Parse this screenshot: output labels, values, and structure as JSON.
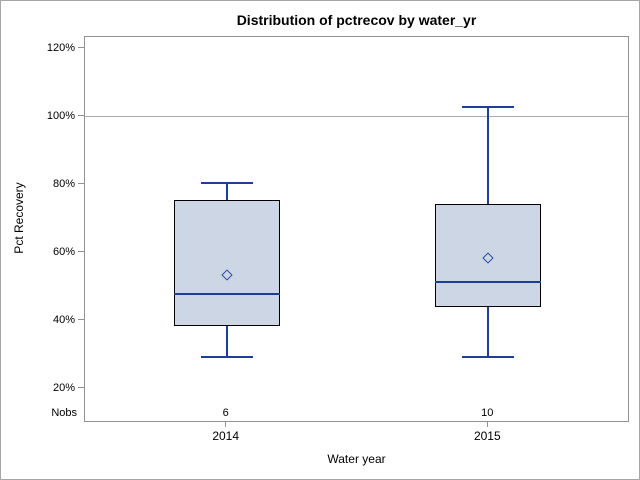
{
  "chart_data": {
    "type": "boxplot",
    "title": "Distribution of pctrecov by water_yr",
    "xlabel": "Water year",
    "ylabel": "Pct Recovery",
    "nobs_label": "Nobs",
    "categories": [
      "2014",
      "2015"
    ],
    "series": [
      {
        "category": "2014",
        "nobs": "6",
        "whisker_low": 29.5,
        "q1": 38.5,
        "median": 48,
        "mean": 53.5,
        "q3": 75.5,
        "whisker_high": 80.5
      },
      {
        "category": "2015",
        "nobs": "10",
        "whisker_low": 29.5,
        "q1": 44,
        "median": 51.5,
        "mean": 58.5,
        "q3": 74.5,
        "whisker_high": 103
      }
    ],
    "y_ticks": [
      20,
      40,
      60,
      80,
      100,
      120
    ],
    "y_tick_suffix": "%",
    "ylim": [
      10,
      123.5
    ],
    "reference_line": 100,
    "grid": false,
    "legend": "none"
  },
  "colors": {
    "background": "#ffffff",
    "figure_border": "#a6a6a6",
    "frame": "#8f9194",
    "tick": "#8f9194",
    "gridline": "#a9adb2",
    "box_fill": "#ccd6e4",
    "box_border": "#000000",
    "whisker": "#1e3d96",
    "median": "#1e3d96",
    "mean_marker": "#2b4ba1",
    "text": "#000000"
  }
}
